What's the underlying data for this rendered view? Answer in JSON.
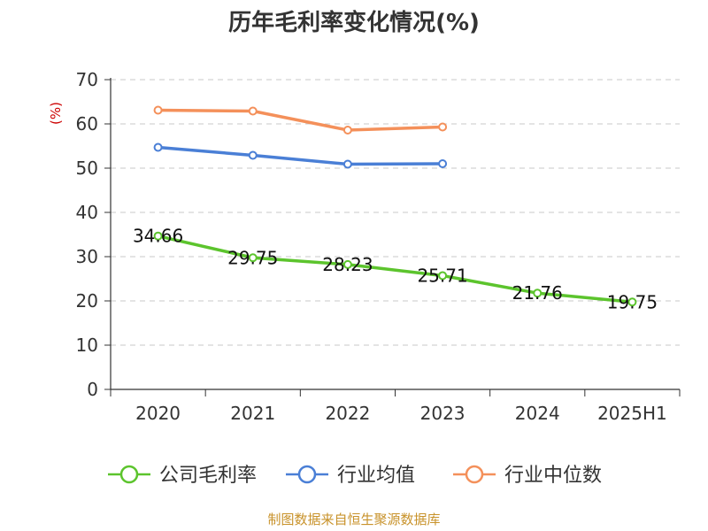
{
  "chart_data": {
    "type": "line",
    "title": "历年毛利率变化情况(%)",
    "ylabel": "(%)",
    "xlabel": "",
    "categories": [
      "2020",
      "2021",
      "2022",
      "2023",
      "2024",
      "2025H1"
    ],
    "yticks": [
      "0",
      "10",
      "20",
      "30",
      "40",
      "50",
      "60",
      "70"
    ],
    "ylim": [
      0,
      70
    ],
    "grid": true,
    "legend_position": "bottom",
    "series": [
      {
        "name": "公司毛利率",
        "color": "#5cc42d",
        "values": [
          34.66,
          29.75,
          28.23,
          25.71,
          21.76,
          19.75
        ],
        "labels": [
          "34.66",
          "29.75",
          "28.23",
          "25.71",
          "21.76",
          "19.75"
        ]
      },
      {
        "name": "行业均值",
        "color": "#4a7fd6",
        "values": [
          54.7,
          52.9,
          50.9,
          51.0,
          null,
          null
        ]
      },
      {
        "name": "行业中位数",
        "color": "#f4905a",
        "values": [
          63.1,
          62.9,
          58.6,
          59.3,
          null,
          null
        ]
      }
    ]
  },
  "footer": {
    "source": "制图数据来自恒生聚源数据库"
  }
}
